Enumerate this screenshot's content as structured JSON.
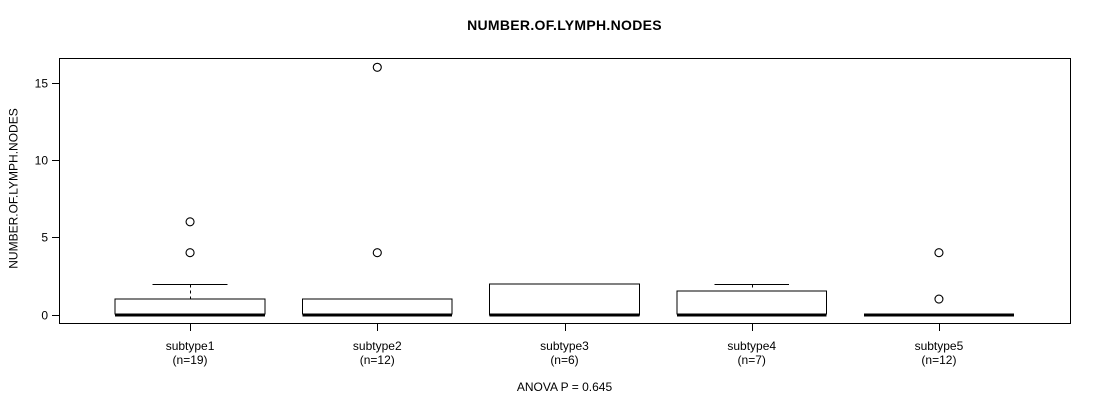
{
  "chart_data": {
    "type": "boxplot",
    "title": "NUMBER.OF.LYMPH.NODES",
    "ylabel": "NUMBER.OF.LYMPH.NODES",
    "xlabel": "",
    "footer_annotation": "ANOVA P = 0.645",
    "yticks": [
      0,
      5,
      10,
      15
    ],
    "ylim": [
      -0.55,
      16.6
    ],
    "xlim": [
      0.3,
      5.7
    ],
    "grid": false,
    "legend": null,
    "colors": {
      "stroke": "#000000",
      "box_fill": "#ffffff",
      "background": "#ffffff"
    },
    "boxes": [
      {
        "position": 1,
        "label": "subtype1",
        "sublabel": "(n=19)",
        "q1": 0,
        "median": 0,
        "q3": 1,
        "whisker_low": 0,
        "whisker_high": 2,
        "outliers": [
          4,
          6
        ]
      },
      {
        "position": 2,
        "label": "subtype2",
        "sublabel": "(n=12)",
        "q1": 0,
        "median": 0,
        "q3": 1,
        "whisker_low": 0,
        "whisker_high": 1,
        "outliers": [
          4,
          16
        ]
      },
      {
        "position": 3,
        "label": "subtype3",
        "sublabel": "(n=6)",
        "q1": 0,
        "median": 0,
        "q3": 2,
        "whisker_low": 0,
        "whisker_high": 2,
        "outliers": []
      },
      {
        "position": 4,
        "label": "subtype4",
        "sublabel": "(n=7)",
        "q1": 0,
        "median": 0,
        "q3": 1.5,
        "whisker_low": 0,
        "whisker_high": 2,
        "outliers": []
      },
      {
        "position": 5,
        "label": "subtype5",
        "sublabel": "(n=12)",
        "q1": 0,
        "median": 0,
        "q3": 0,
        "whisker_low": 0,
        "whisker_high": 0,
        "outliers": [
          1,
          4
        ]
      }
    ]
  }
}
